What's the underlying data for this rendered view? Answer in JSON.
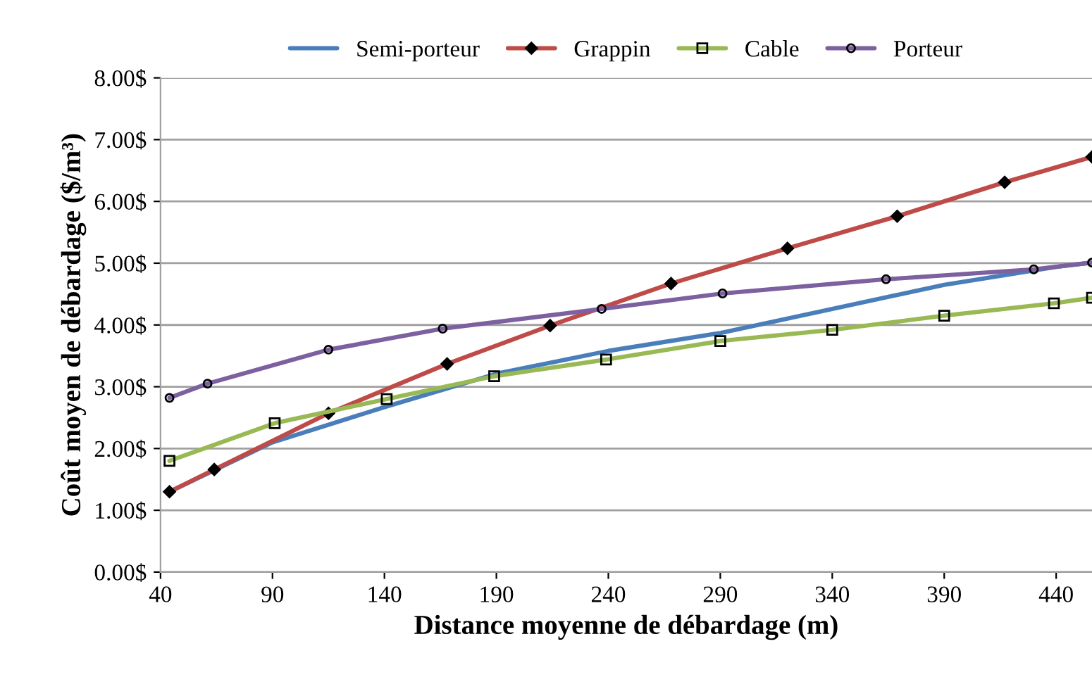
{
  "chart_data": {
    "type": "line",
    "xlabel": "Distance moyenne de débardage (m)",
    "ylabel": "Coût moyen de débardage ($/m³)",
    "xlim": [
      40,
      456
    ],
    "xticks": [
      40,
      90,
      140,
      190,
      240,
      290,
      340,
      390,
      440
    ],
    "ylim": [
      0,
      8
    ],
    "yticks": [
      {
        "value": 0,
        "label": "0.00$"
      },
      {
        "value": 1,
        "label": "1.00$"
      },
      {
        "value": 2,
        "label": "2.00$"
      },
      {
        "value": 3,
        "label": "3.00$"
      },
      {
        "value": 4,
        "label": "4.00$"
      },
      {
        "value": 5,
        "label": "5.00$"
      },
      {
        "value": 6,
        "label": "6.00$"
      },
      {
        "value": 7,
        "label": "7.00$"
      },
      {
        "value": 8,
        "label": "8.00$"
      }
    ],
    "grid": "y",
    "legend": "top",
    "series": [
      {
        "name": "Semi-porteur",
        "color": "#4a7ebb",
        "marker": "none",
        "x": [
          44,
          90,
          140,
          190,
          240,
          290,
          340,
          390,
          440,
          456
        ],
        "values": [
          1.3,
          2.1,
          2.67,
          3.21,
          3.58,
          3.87,
          4.26,
          4.65,
          4.94,
          5.01
        ]
      },
      {
        "name": "Grappin",
        "color": "#be4b48",
        "marker": "diamond",
        "x": [
          44,
          64,
          115,
          168,
          214,
          268,
          320,
          369,
          417,
          456
        ],
        "values": [
          1.3,
          1.66,
          2.57,
          3.37,
          3.99,
          4.67,
          5.24,
          5.76,
          6.31,
          6.72
        ]
      },
      {
        "name": "Cable",
        "color": "#98b954",
        "marker": "square",
        "x": [
          44,
          91,
          141,
          189,
          239,
          290,
          340,
          390,
          439,
          456
        ],
        "values": [
          1.8,
          2.41,
          2.8,
          3.17,
          3.44,
          3.74,
          3.92,
          4.15,
          4.35,
          4.44
        ]
      },
      {
        "name": "Porteur",
        "color": "#7d60a0",
        "marker": "circle",
        "x": [
          44,
          61,
          115,
          166,
          237,
          291,
          364,
          430,
          456
        ],
        "values": [
          2.82,
          3.05,
          3.6,
          3.94,
          4.26,
          4.51,
          4.74,
          4.9,
          5.01
        ]
      }
    ]
  }
}
